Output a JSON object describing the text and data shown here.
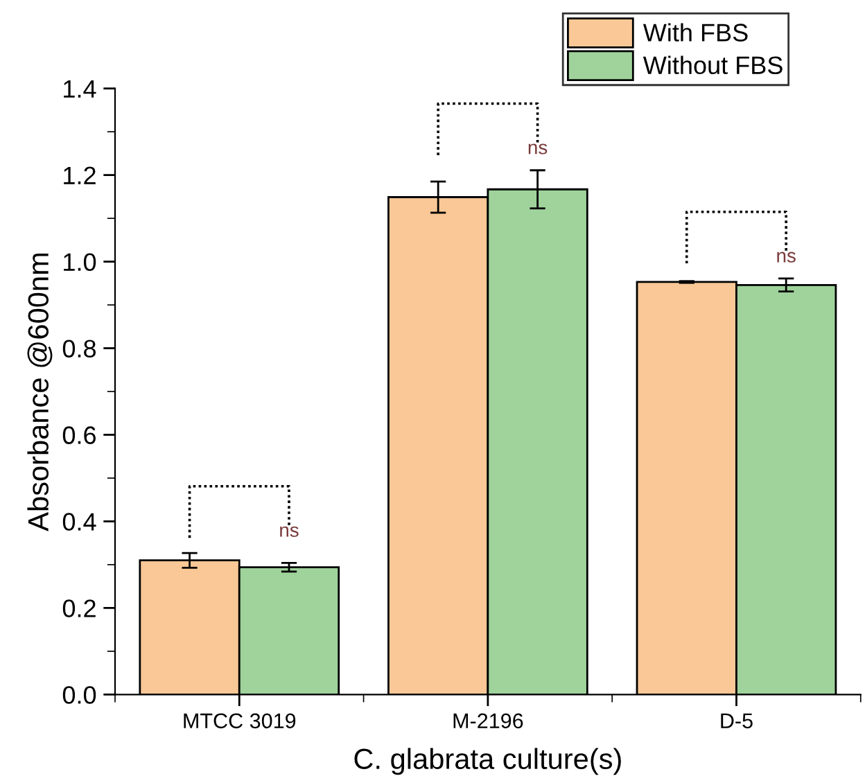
{
  "chart_data": {
    "type": "bar",
    "xlabel": "C. glabrata culture(s)",
    "ylabel": "Absorbance @600nm",
    "categories": [
      "MTCC 3019",
      "M-2196",
      "D-5"
    ],
    "series": [
      {
        "name": "With FBS",
        "color": "#f9c896",
        "values": [
          0.31,
          1.149,
          0.953
        ],
        "errors": [
          0.017,
          0.036,
          0.002
        ]
      },
      {
        "name": "Without FBS",
        "color": "#9fd39b",
        "values": [
          0.294,
          1.167,
          0.946
        ],
        "errors": [
          0.01,
          0.044,
          0.015
        ]
      }
    ],
    "ylim": [
      0,
      1.4
    ],
    "yticks": [
      {
        "value": 0,
        "label": "0.0"
      },
      0.2,
      0.4,
      0.6,
      0.8,
      {
        "value": 1,
        "label": "1.0"
      },
      1.2,
      1.4
    ],
    "annotations": [
      "ns",
      "ns",
      "ns"
    ],
    "legend": "top right",
    "grid": false
  }
}
